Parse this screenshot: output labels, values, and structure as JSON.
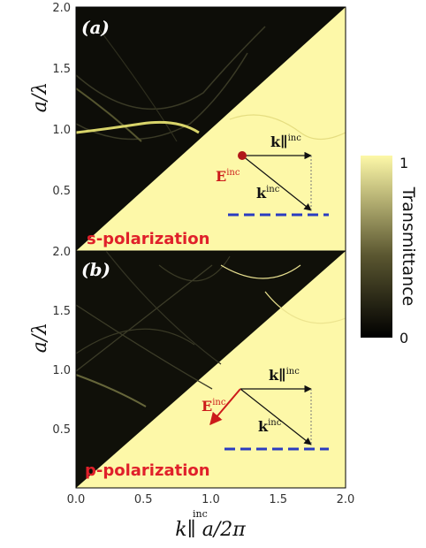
{
  "chart_data": [
    {
      "type": "heatmap",
      "panel_label": "(a)",
      "polarization_label": "s-polarization",
      "x_range": [
        0,
        2
      ],
      "ylim": [
        0,
        2
      ],
      "yticks": [
        "2.0",
        "1.5",
        "1.0",
        "0.5"
      ],
      "xticks": [],
      "ylabel": "a/λ",
      "low_transmittance_region": "a/λ < k∥ a/2π",
      "features": [
        {
          "a_over_lambda": 0.97,
          "note": "bright horizontal resonance band"
        },
        {
          "a_over_lambda": 1.42,
          "note": "faint bright band"
        }
      ],
      "inset": {
        "k_parallel_label": "k∥",
        "k_label": "k",
        "field_label": "E",
        "superscript": "inc",
        "field_color": "#cc1a1a"
      }
    },
    {
      "type": "heatmap",
      "panel_label": "(b)",
      "polarization_label": "p-polarization",
      "x_range": [
        0,
        2
      ],
      "ylim": [
        0,
        2
      ],
      "yticks": [
        "2.0",
        "1.5",
        "1.0",
        "0.5"
      ],
      "xticks": [
        "0.0",
        "0.5",
        "1.0",
        "1.5",
        "2.0"
      ],
      "ylabel": "a/λ",
      "xlabel": "k∥ a/2π",
      "xlabel_superscript": "inc",
      "low_transmittance_region": "a/λ < k∥ a/2π",
      "inset": {
        "k_parallel_label": "k∥",
        "k_label": "k",
        "field_label": "E",
        "superscript": "inc",
        "field_color": "#cc1a1a"
      }
    }
  ],
  "colorbar": {
    "title": "Transmittance",
    "min_label": "0",
    "max_label": "1",
    "low_color": "#000000",
    "high_color": "#fdf8a8"
  }
}
